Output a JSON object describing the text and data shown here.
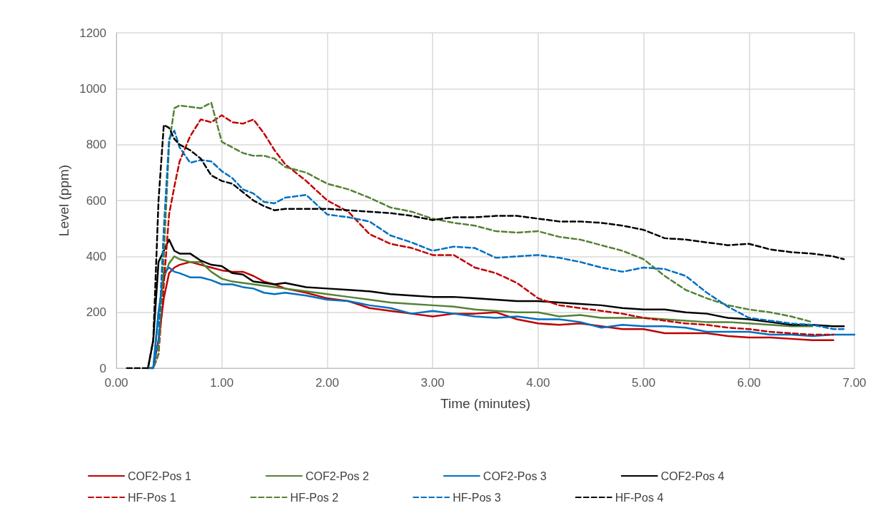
{
  "chart_data": {
    "type": "line",
    "xlabel": "Time (minutes)",
    "ylabel": "Level (ppm)",
    "x": [
      0.1,
      0.2,
      0.3,
      0.35,
      0.4,
      0.45,
      0.5,
      0.55,
      0.6,
      0.7,
      0.8,
      0.9,
      1.0,
      1.1,
      1.2,
      1.3,
      1.4,
      1.5,
      1.6,
      1.8,
      2.0,
      2.2,
      2.4,
      2.6,
      2.8,
      3.0,
      3.2,
      3.4,
      3.6,
      3.8,
      4.0,
      4.2,
      4.4,
      4.6,
      4.8,
      5.0,
      5.2,
      5.4,
      5.6,
      5.8,
      6.0,
      6.2,
      6.4,
      6.6,
      6.8,
      6.9,
      7.0
    ],
    "xlim": [
      0,
      7
    ],
    "xticks": [
      {
        "value": 0,
        "label": "0.00"
      },
      {
        "value": 1,
        "label": "1.00"
      },
      {
        "value": 2,
        "label": "2.00"
      },
      {
        "value": 3,
        "label": "3.00"
      },
      {
        "value": 4,
        "label": "4.00"
      },
      {
        "value": 5,
        "label": "5.00"
      },
      {
        "value": 6,
        "label": "6.00"
      },
      {
        "value": 7,
        "label": "7.00"
      }
    ],
    "ylim": [
      0,
      1200
    ],
    "yticks": [
      0,
      200,
      400,
      600,
      800,
      1000,
      1200
    ],
    "grid": true,
    "legend": "bottom",
    "marker": "none",
    "series": [
      {
        "name": "COF2-Pos 1",
        "color": "#c00000",
        "line_style": "solid",
        "values": [
          null,
          null,
          0,
          0,
          100,
          250,
          340,
          360,
          370,
          380,
          370,
          360,
          350,
          345,
          345,
          330,
          310,
          300,
          285,
          270,
          250,
          240,
          215,
          205,
          195,
          185,
          195,
          195,
          200,
          175,
          160,
          155,
          160,
          150,
          140,
          140,
          125,
          125,
          125,
          115,
          110,
          110,
          105,
          100,
          100,
          null,
          null
        ]
      },
      {
        "name": "COF2-Pos 2",
        "color": "#548235",
        "line_style": "solid",
        "values": [
          null,
          null,
          0,
          0,
          200,
          320,
          375,
          400,
          390,
          380,
          380,
          345,
          320,
          310,
          305,
          300,
          295,
          290,
          285,
          275,
          265,
          255,
          245,
          235,
          230,
          225,
          220,
          210,
          205,
          200,
          200,
          185,
          190,
          180,
          180,
          180,
          175,
          170,
          165,
          165,
          160,
          155,
          150,
          150,
          null,
          null,
          null
        ]
      },
      {
        "name": "COF2-Pos 3",
        "color": "#0070c0",
        "line_style": "solid",
        "values": [
          null,
          null,
          0,
          0,
          200,
          340,
          360,
          345,
          340,
          325,
          325,
          315,
          300,
          300,
          290,
          285,
          270,
          265,
          270,
          260,
          245,
          240,
          225,
          215,
          195,
          205,
          195,
          185,
          180,
          185,
          175,
          175,
          165,
          145,
          155,
          150,
          150,
          145,
          130,
          130,
          130,
          120,
          120,
          115,
          120,
          120,
          120
        ]
      },
      {
        "name": "COF2-Pos 4",
        "color": "#000000",
        "line_style": "solid",
        "values": [
          null,
          null,
          0,
          100,
          380,
          420,
          460,
          420,
          410,
          410,
          385,
          370,
          365,
          340,
          335,
          310,
          305,
          300,
          305,
          290,
          285,
          280,
          275,
          265,
          260,
          255,
          255,
          250,
          245,
          240,
          240,
          235,
          230,
          225,
          215,
          210,
          210,
          200,
          195,
          180,
          175,
          165,
          155,
          155,
          150,
          150,
          null
        ]
      },
      {
        "name": "HF-Pos 1",
        "color": "#c00000",
        "line_style": "dashed",
        "values": [
          null,
          null,
          0,
          0,
          50,
          300,
          550,
          650,
          740,
          830,
          890,
          880,
          905,
          880,
          875,
          890,
          840,
          780,
          730,
          670,
          600,
          560,
          480,
          445,
          430,
          405,
          405,
          360,
          340,
          305,
          250,
          225,
          215,
          205,
          195,
          180,
          170,
          160,
          155,
          145,
          140,
          130,
          125,
          120,
          120,
          null,
          null
        ]
      },
      {
        "name": "HF-Pos 2",
        "color": "#548235",
        "line_style": "dashed",
        "values": [
          null,
          null,
          0,
          0,
          50,
          400,
          800,
          930,
          940,
          935,
          930,
          950,
          810,
          790,
          770,
          760,
          760,
          750,
          720,
          700,
          660,
          640,
          610,
          575,
          560,
          535,
          520,
          510,
          490,
          485,
          490,
          470,
          460,
          440,
          420,
          390,
          330,
          280,
          250,
          225,
          210,
          200,
          185,
          165,
          null,
          null,
          null
        ]
      },
      {
        "name": "HF-Pos 3",
        "color": "#0070c0",
        "line_style": "dashed",
        "values": [
          null,
          null,
          0,
          0,
          100,
          500,
          820,
          850,
          790,
          735,
          745,
          740,
          705,
          680,
          640,
          625,
          595,
          590,
          610,
          620,
          550,
          540,
          525,
          475,
          450,
          420,
          435,
          430,
          395,
          400,
          405,
          395,
          380,
          360,
          345,
          360,
          355,
          330,
          270,
          220,
          180,
          170,
          160,
          155,
          140,
          140,
          null
        ]
      },
      {
        "name": "HF-Pos 4",
        "color": "#000000",
        "line_style": "dashed",
        "values": [
          0,
          0,
          0,
          100,
          600,
          870,
          860,
          820,
          800,
          780,
          750,
          690,
          670,
          660,
          630,
          600,
          580,
          565,
          570,
          570,
          570,
          565,
          560,
          555,
          545,
          530,
          540,
          540,
          545,
          545,
          535,
          525,
          525,
          520,
          510,
          495,
          465,
          460,
          450,
          440,
          445,
          425,
          415,
          410,
          400,
          390,
          null
        ]
      }
    ]
  }
}
